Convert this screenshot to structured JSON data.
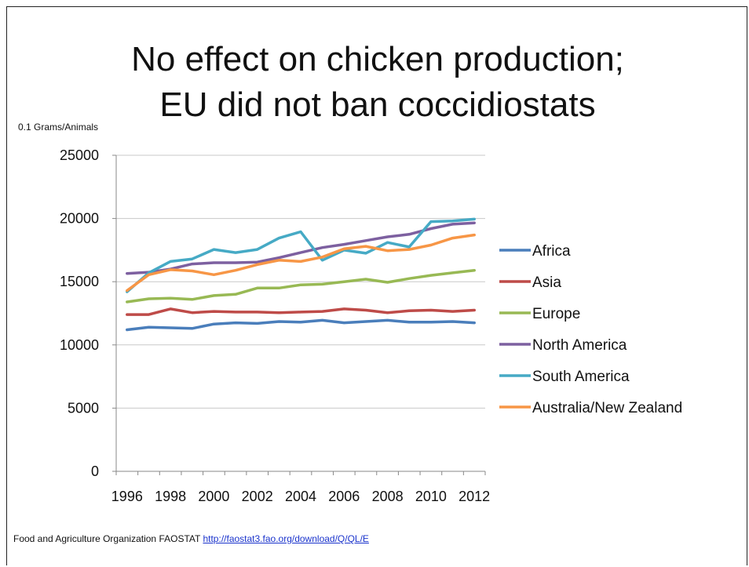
{
  "slide": {
    "title_line1": "No effect on chicken production;",
    "title_line2": "EU did not ban coccidiostats",
    "footer_text": "Food and Agriculture Organization FAOSTAT",
    "footer_link": "http://faostat3.fao.org/download/Q/QL/E"
  },
  "chart_data": {
    "type": "line",
    "title": "",
    "ylabel": "0.1 Grams/Animals",
    "xlabel": "",
    "ylim": [
      0,
      25000
    ],
    "yticks": [
      0,
      5000,
      10000,
      15000,
      20000,
      25000
    ],
    "x": [
      1996,
      1997,
      1998,
      1999,
      2000,
      2001,
      2002,
      2003,
      2004,
      2005,
      2006,
      2007,
      2008,
      2009,
      2010,
      2011,
      2012
    ],
    "xtick_labels": [
      "1996",
      "1998",
      "2000",
      "2002",
      "2004",
      "2006",
      "2008",
      "2010",
      "2012"
    ],
    "grid": true,
    "legend_position": "right",
    "series": [
      {
        "name": "Africa",
        "color": "#4a7ebb",
        "values": [
          11200,
          11400,
          11350,
          11300,
          11650,
          11750,
          11700,
          11850,
          11800,
          11950,
          11750,
          11850,
          11950,
          11800,
          11800,
          11850,
          11750
        ]
      },
      {
        "name": "Asia",
        "color": "#be4b48",
        "values": [
          12400,
          12400,
          12850,
          12550,
          12650,
          12600,
          12600,
          12550,
          12600,
          12650,
          12850,
          12750,
          12550,
          12700,
          12750,
          12650,
          12750
        ]
      },
      {
        "name": "Europe",
        "color": "#98b954",
        "values": [
          13400,
          13650,
          13700,
          13600,
          13900,
          14000,
          14500,
          14500,
          14750,
          14800,
          15000,
          15200,
          14950,
          15250,
          15500,
          15700,
          15900
        ]
      },
      {
        "name": "North America",
        "color": "#7d60a0",
        "values": [
          15650,
          15750,
          16000,
          16400,
          16500,
          16500,
          16550,
          16900,
          17300,
          17700,
          17950,
          18250,
          18550,
          18750,
          19200,
          19550,
          19650
        ]
      },
      {
        "name": "South America",
        "color": "#46aac5",
        "values": [
          14200,
          15700,
          16600,
          16800,
          17550,
          17300,
          17550,
          18450,
          18950,
          16700,
          17500,
          17250,
          18100,
          17750,
          19750,
          19800,
          19950
        ]
      },
      {
        "name": "Australia/New Zealand",
        "color": "#f79646",
        "values": [
          14300,
          15550,
          15950,
          15850,
          15550,
          15900,
          16350,
          16700,
          16600,
          16950,
          17600,
          17800,
          17450,
          17550,
          17900,
          18450,
          18700
        ]
      }
    ]
  }
}
